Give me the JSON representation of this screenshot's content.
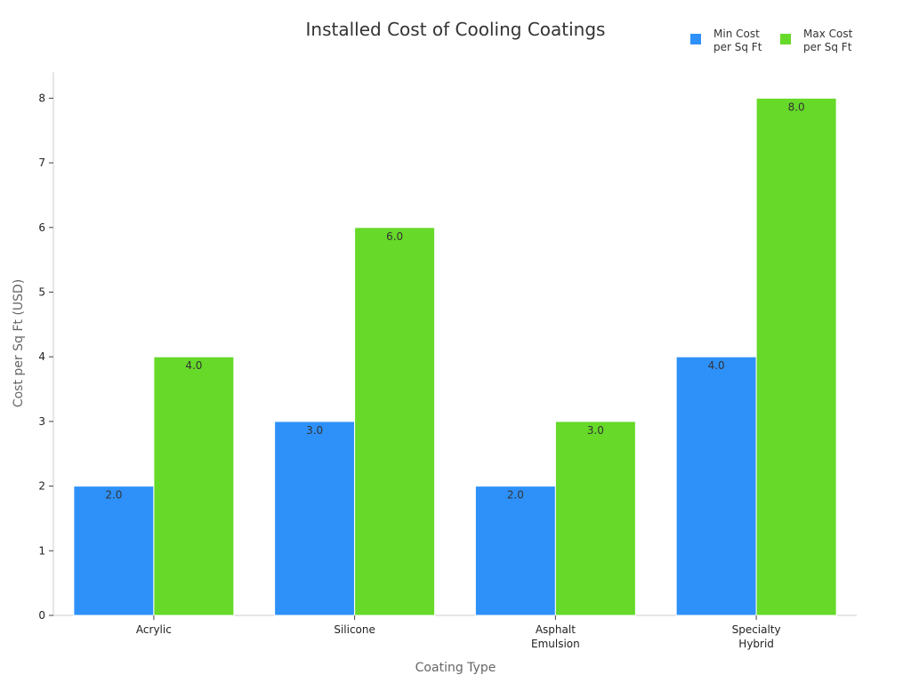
{
  "chart_data": {
    "type": "bar",
    "title": "Installed Cost of Cooling Coatings",
    "xlabel": "Coating Type",
    "ylabel": "Cost per Sq Ft (USD)",
    "categories": [
      [
        "Acrylic"
      ],
      [
        "Silicone"
      ],
      [
        "Asphalt",
        "Emulsion"
      ],
      [
        "Specialty",
        "Hybrid"
      ]
    ],
    "series": [
      {
        "name": [
          "Min Cost",
          "per Sq Ft"
        ],
        "color": "#2e91f9",
        "values": [
          2.0,
          3.0,
          2.0,
          4.0
        ],
        "data_labels": [
          "2.0",
          "3.0",
          "2.0",
          "4.0"
        ]
      },
      {
        "name": [
          "Max Cost",
          "per Sq Ft"
        ],
        "color": "#66d929",
        "values": [
          4.0,
          6.0,
          3.0,
          8.0
        ],
        "data_labels": [
          "4.0",
          "6.0",
          "3.0",
          "8.0"
        ]
      }
    ],
    "ylim": [
      0,
      8.4
    ],
    "yticks": [
      "0",
      "1",
      "2",
      "3",
      "4",
      "5",
      "6",
      "7",
      "8"
    ],
    "grid": false,
    "legend_position": "top-right"
  }
}
